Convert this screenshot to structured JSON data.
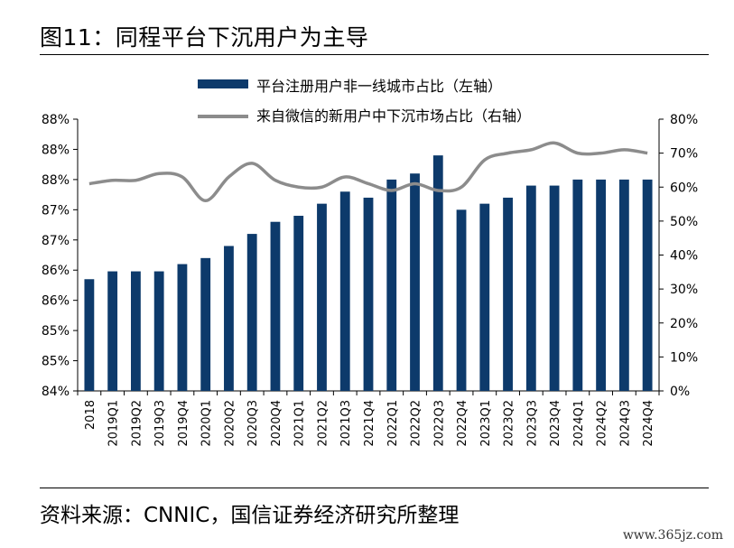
{
  "figure": {
    "title": "图11：同程平台下沉用户为主导",
    "source": "资料来源：CNNIC，国信证券经济研究所整理",
    "watermark": "www.365jz.com"
  },
  "chart_data": {
    "type": "bar+line",
    "categories": [
      "2018",
      "2019Q1",
      "2019Q2",
      "2019Q3",
      "2019Q4",
      "2020Q1",
      "2020Q2",
      "2020Q3",
      "2020Q4",
      "2021Q1",
      "2021Q2",
      "2021Q3",
      "2021Q4",
      "2022Q1",
      "2022Q2",
      "2022Q3",
      "2022Q4",
      "2023Q1",
      "2023Q2",
      "2023Q3",
      "2023Q4",
      "2024Q1",
      "2024Q2",
      "2024Q3",
      "2024Q4"
    ],
    "left_axis": {
      "tick_values": [
        84,
        84.5,
        85,
        85.5,
        86,
        86.5,
        87,
        87.5,
        88,
        88.5
      ],
      "tick_labels": [
        "84%",
        "85%",
        "85%",
        "86%",
        "86%",
        "87%",
        "87%",
        "88%",
        "88%",
        "88%"
      ],
      "ylim": [
        84,
        88.5
      ]
    },
    "right_axis": {
      "tick_values": [
        0,
        10,
        20,
        30,
        40,
        50,
        60,
        70,
        80
      ],
      "tick_labels": [
        "0%",
        "10%",
        "20%",
        "30%",
        "40%",
        "50%",
        "60%",
        "70%",
        "80%"
      ],
      "ylim": [
        0,
        80
      ]
    },
    "series": [
      {
        "name": "平台注册用户非一线城市占比（左轴）",
        "type": "bar",
        "axis": "left",
        "color": "#0d3a6b",
        "values": [
          85.85,
          85.98,
          85.98,
          85.98,
          86.1,
          86.2,
          86.4,
          86.6,
          86.8,
          86.9,
          87.1,
          87.3,
          87.2,
          87.5,
          87.6,
          87.9,
          87.0,
          87.1,
          87.2,
          87.4,
          87.4,
          87.5,
          87.5,
          87.5,
          87.5
        ]
      },
      {
        "name": "来自微信的新用户中下沉市场占比（右轴）",
        "type": "line",
        "axis": "right",
        "color": "#8c8c8c",
        "values": [
          61,
          62,
          62,
          64,
          63,
          56,
          63,
          67,
          62,
          60,
          60,
          63,
          61,
          59,
          61,
          59,
          60,
          68,
          70,
          71,
          73,
          70,
          70,
          71,
          70
        ]
      }
    ],
    "legend_position": "top"
  }
}
